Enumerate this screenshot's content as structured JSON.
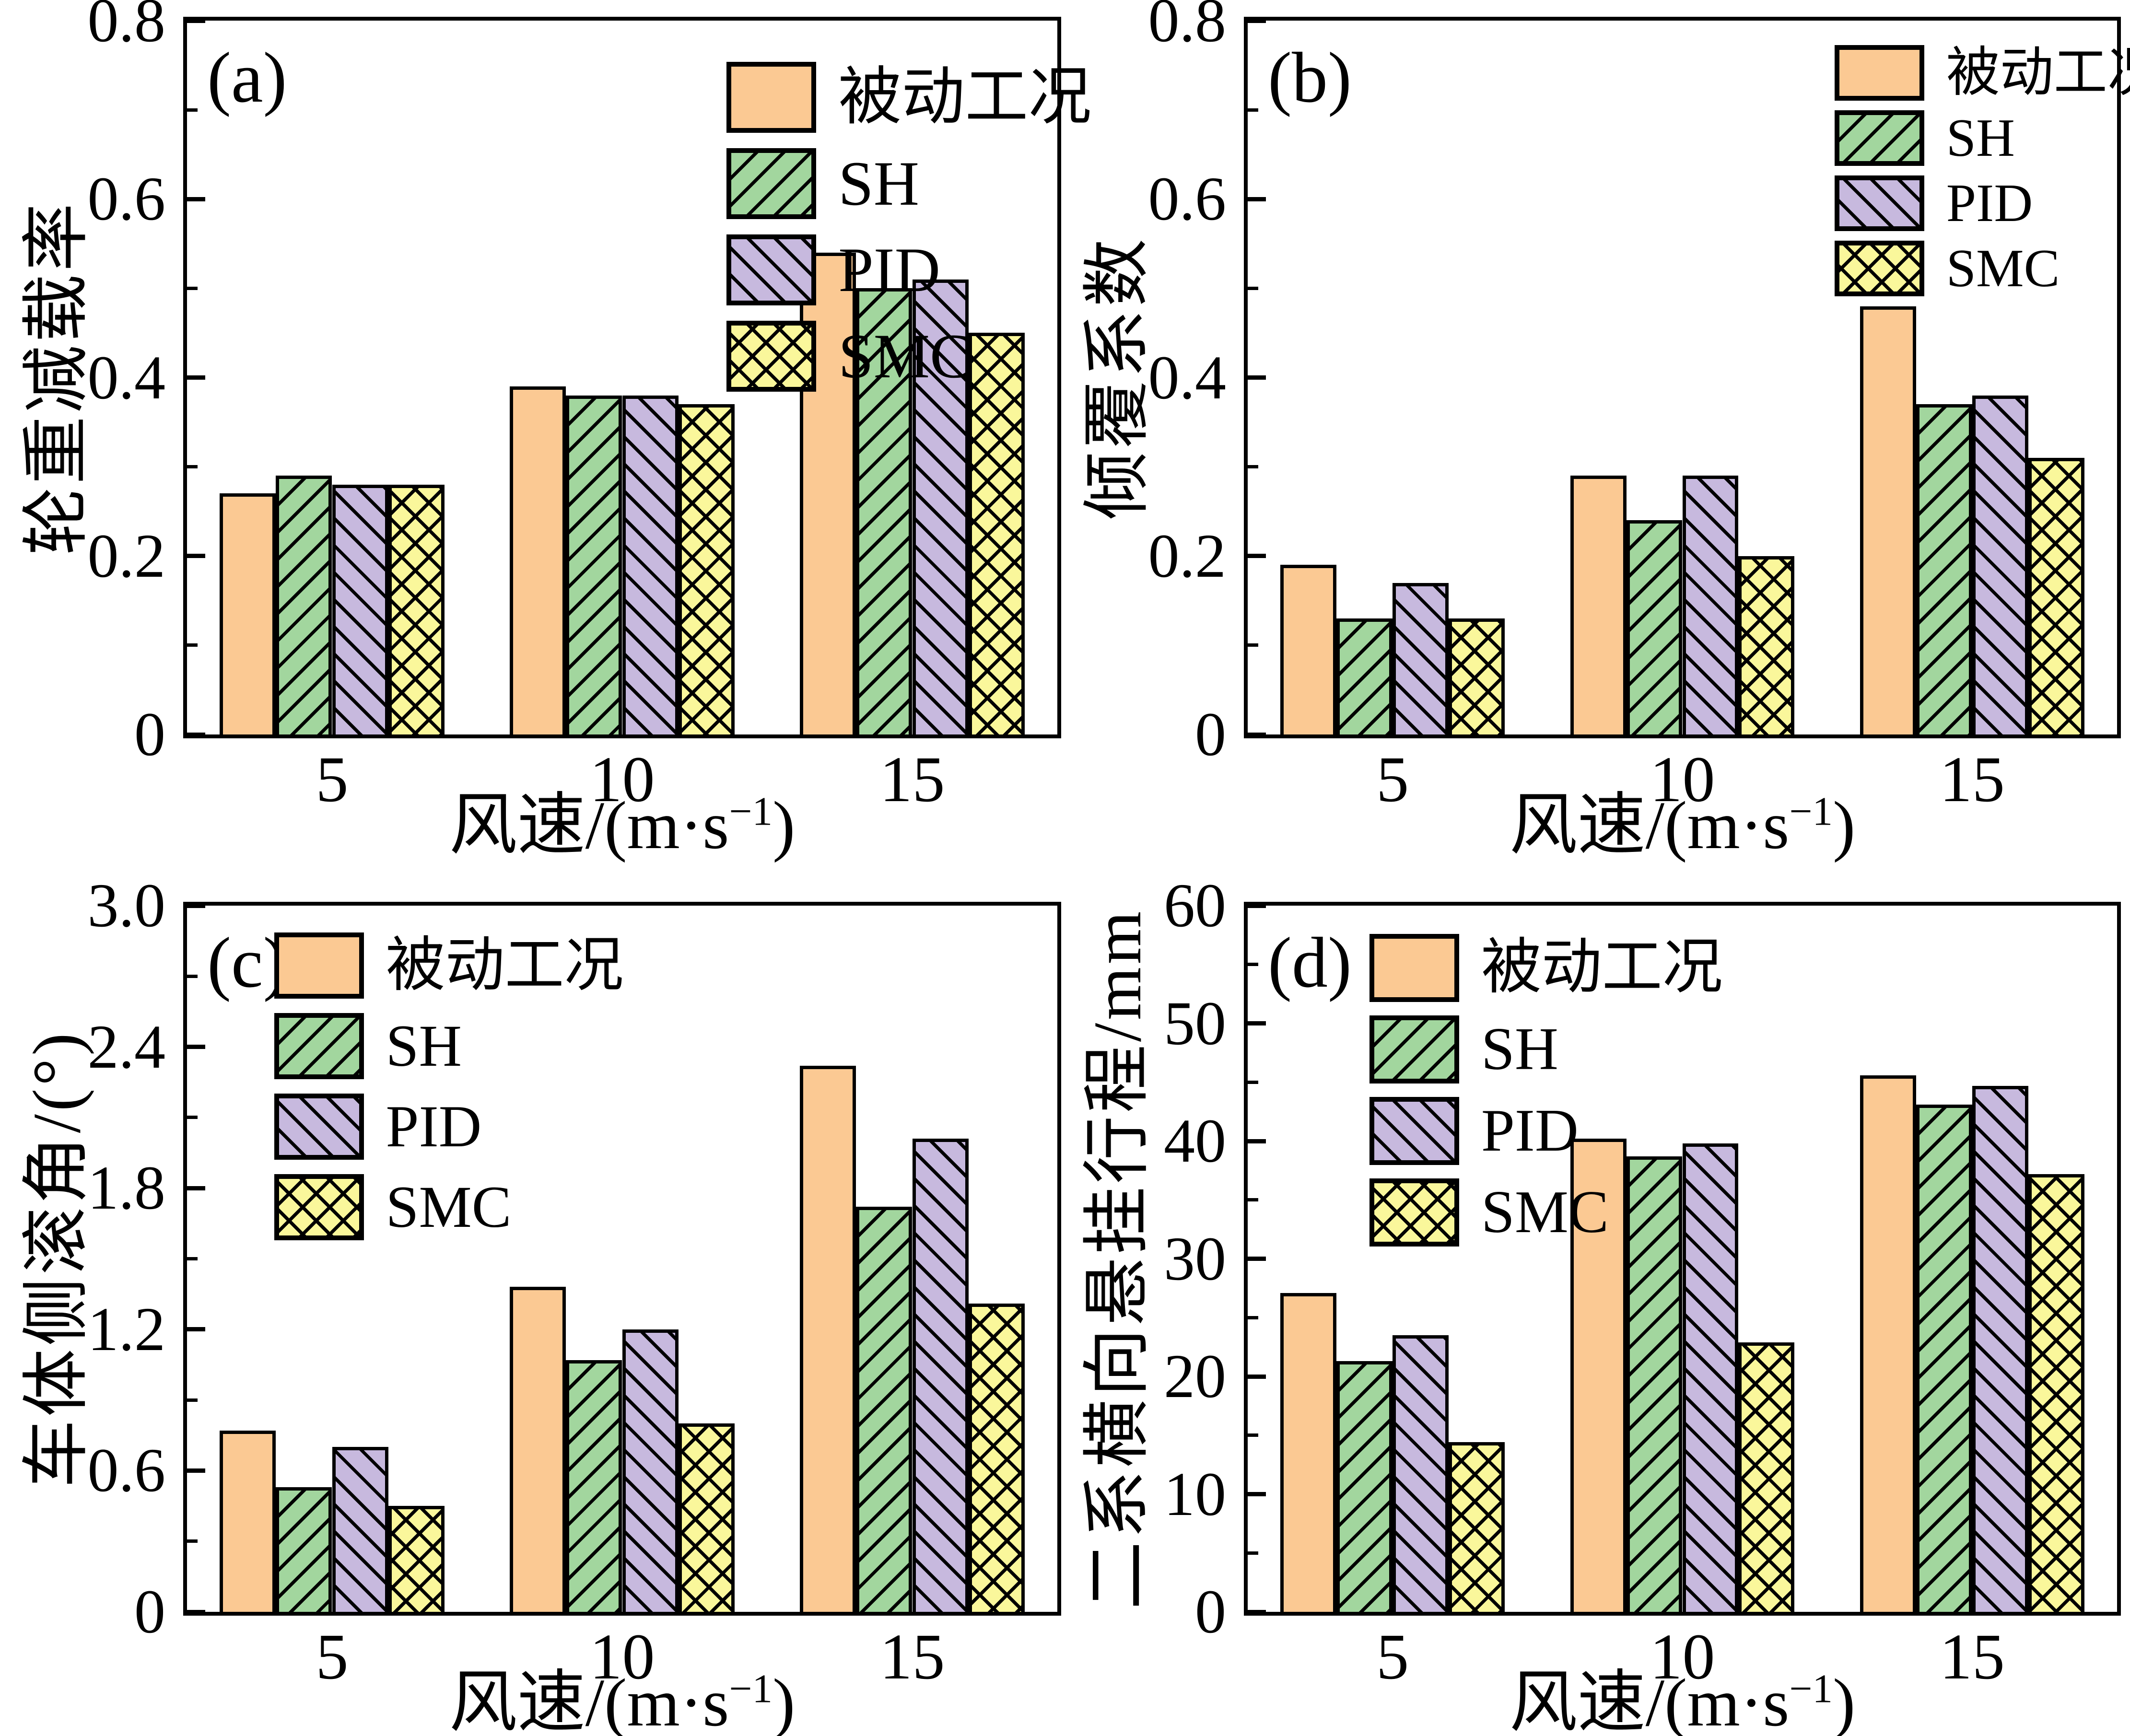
{
  "figure": {
    "background": "#FFFFFF",
    "axis_color": "#000000",
    "hatch_color": "#000000",
    "xlabel": {
      "prefix": "风速/(m·s",
      "sup": "−1",
      "suffix": ")"
    },
    "legend_labels": [
      "被动工况",
      "SH",
      "PID",
      "SMC"
    ],
    "series_colors": {
      "passive": "#FBC993",
      "sh": "#A2D69E",
      "pid": "#C7B9DE",
      "smc": "#FAF79B"
    }
  },
  "chart_data": [
    {
      "type": "bar",
      "panel_label": "(a)",
      "ylabel": "轮重减载率",
      "xlabel": "风速/(m·s−1)",
      "ylim": [
        0,
        0.8
      ],
      "grid": false,
      "legend_position": "top-right",
      "yticks": [
        {
          "v": 0,
          "t": "0"
        },
        {
          "v": 0.2,
          "t": "0.2"
        },
        {
          "v": 0.4,
          "t": "0.4"
        },
        {
          "v": 0.6,
          "t": "0.6"
        },
        {
          "v": 0.8,
          "t": "0.8"
        }
      ],
      "minor_ticks": [
        0.1,
        0.3,
        0.5,
        0.7
      ],
      "categories": [
        "5",
        "10",
        "15"
      ],
      "series": [
        {
          "name": "被动工况",
          "key": "passive",
          "color": "#FBC993",
          "hatch": "none",
          "values": [
            0.27,
            0.39,
            0.54
          ]
        },
        {
          "name": "SH",
          "key": "sh",
          "color": "#A2D69E",
          "hatch": "/",
          "values": [
            0.29,
            0.38,
            0.5
          ]
        },
        {
          "name": "PID",
          "key": "pid",
          "color": "#C7B9DE",
          "hatch": "\\",
          "values": [
            0.28,
            0.38,
            0.51
          ]
        },
        {
          "name": "SMC",
          "key": "smc",
          "color": "#FAF79B",
          "hatch": "x",
          "values": [
            0.28,
            0.37,
            0.45
          ]
        }
      ]
    },
    {
      "type": "bar",
      "panel_label": "(b)",
      "ylabel": "倾覆系数",
      "xlabel": "风速/(m·s−1)",
      "ylim": [
        0,
        0.8
      ],
      "grid": false,
      "legend_position": "top-right",
      "yticks": [
        {
          "v": 0,
          "t": "0"
        },
        {
          "v": 0.2,
          "t": "0.2"
        },
        {
          "v": 0.4,
          "t": "0.4"
        },
        {
          "v": 0.6,
          "t": "0.6"
        },
        {
          "v": 0.8,
          "t": "0.8"
        }
      ],
      "minor_ticks": [
        0.1,
        0.3,
        0.5,
        0.7
      ],
      "categories": [
        "5",
        "10",
        "15"
      ],
      "series": [
        {
          "name": "被动工况",
          "key": "passive",
          "color": "#FBC993",
          "hatch": "none",
          "values": [
            0.19,
            0.29,
            0.48
          ]
        },
        {
          "name": "SH",
          "key": "sh",
          "color": "#A2D69E",
          "hatch": "/",
          "values": [
            0.13,
            0.24,
            0.37
          ]
        },
        {
          "name": "PID",
          "key": "pid",
          "color": "#C7B9DE",
          "hatch": "\\",
          "values": [
            0.17,
            0.29,
            0.38
          ]
        },
        {
          "name": "SMC",
          "key": "smc",
          "color": "#FAF79B",
          "hatch": "x",
          "values": [
            0.13,
            0.2,
            0.31
          ]
        }
      ]
    },
    {
      "type": "bar",
      "panel_label": "(c)",
      "ylabel": "车体侧滚角/(°)",
      "xlabel": "风速/(m·s−1)",
      "ylim": [
        0,
        3.0
      ],
      "grid": false,
      "legend_position": "top-left",
      "yticks": [
        {
          "v": 0,
          "t": "0"
        },
        {
          "v": 0.6,
          "t": "0.6"
        },
        {
          "v": 1.2,
          "t": "1.2"
        },
        {
          "v": 1.8,
          "t": "1.8"
        },
        {
          "v": 2.4,
          "t": "2.4"
        },
        {
          "v": 3.0,
          "t": "3.0"
        }
      ],
      "minor_ticks": [
        0.3,
        0.9,
        1.5,
        2.1,
        2.7
      ],
      "categories": [
        "5",
        "10",
        "15"
      ],
      "series": [
        {
          "name": "被动工况",
          "key": "passive",
          "color": "#FBC993",
          "hatch": "none",
          "values": [
            0.77,
            1.38,
            2.32
          ]
        },
        {
          "name": "SH",
          "key": "sh",
          "color": "#A2D69E",
          "hatch": "/",
          "values": [
            0.53,
            1.07,
            1.72
          ]
        },
        {
          "name": "PID",
          "key": "pid",
          "color": "#C7B9DE",
          "hatch": "\\",
          "values": [
            0.7,
            1.2,
            2.01
          ]
        },
        {
          "name": "SMC",
          "key": "smc",
          "color": "#FAF79B",
          "hatch": "x",
          "values": [
            0.45,
            0.8,
            1.31
          ]
        }
      ]
    },
    {
      "type": "bar",
      "panel_label": "(d)",
      "ylabel": "二系横向悬挂行程/mm",
      "xlabel": "风速/(m·s−1)",
      "ylim": [
        0,
        60
      ],
      "grid": false,
      "legend_position": "top-left",
      "yticks": [
        {
          "v": 0,
          "t": "0"
        },
        {
          "v": 10,
          "t": "10"
        },
        {
          "v": 20,
          "t": "20"
        },
        {
          "v": 30,
          "t": "30"
        },
        {
          "v": 40,
          "t": "40"
        },
        {
          "v": 50,
          "t": "50"
        },
        {
          "v": 60,
          "t": "60"
        }
      ],
      "minor_ticks": [
        5,
        15,
        25,
        35,
        45,
        55
      ],
      "categories": [
        "5",
        "10",
        "15"
      ],
      "series": [
        {
          "name": "被动工况",
          "key": "passive",
          "color": "#FBC993",
          "hatch": "none",
          "values": [
            27.1,
            40.2,
            45.6
          ]
        },
        {
          "name": "SH",
          "key": "sh",
          "color": "#A2D69E",
          "hatch": "/",
          "values": [
            21.3,
            38.7,
            43.1
          ]
        },
        {
          "name": "PID",
          "key": "pid",
          "color": "#C7B9DE",
          "hatch": "\\",
          "values": [
            23.5,
            39.8,
            44.7
          ]
        },
        {
          "name": "SMC",
          "key": "smc",
          "color": "#FAF79B",
          "hatch": "x",
          "values": [
            14.4,
            22.9,
            37.2
          ]
        }
      ]
    }
  ]
}
